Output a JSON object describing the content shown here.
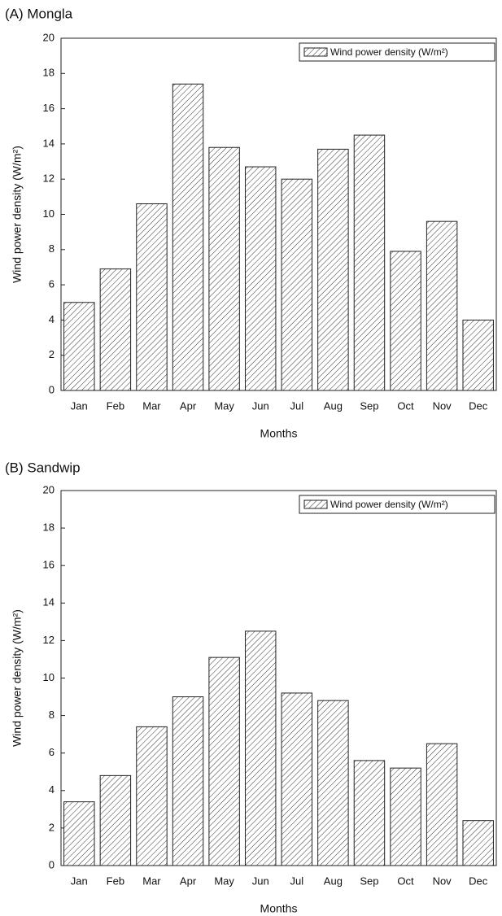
{
  "chart_data": [
    {
      "type": "bar",
      "title": "(A) Mongla",
      "x_label": "Months",
      "y_label": "Wind power density (W/m²)",
      "categories": [
        "Jan",
        "Feb",
        "Mar",
        "Apr",
        "May",
        "Jun",
        "Jul",
        "Aug",
        "Sep",
        "Oct",
        "Nov",
        "Dec"
      ],
      "series": [
        {
          "name": "Wind power density (W/m²)",
          "color": "#333333",
          "values": [
            5.0,
            6.9,
            10.6,
            17.4,
            13.8,
            12.7,
            12.0,
            13.7,
            14.5,
            7.9,
            9.6,
            4.0
          ]
        }
      ],
      "ylim": [
        0,
        20
      ],
      "yticks": [
        0,
        2,
        4,
        6,
        8,
        10,
        12,
        14,
        16,
        18,
        20
      ],
      "legend": "upper-right"
    },
    {
      "type": "bar",
      "title": "(B) Sandwip",
      "x_label": "Months",
      "y_label": "Wind power density (W/m²)",
      "categories": [
        "Jan",
        "Feb",
        "Mar",
        "Apr",
        "May",
        "Jun",
        "Jul",
        "Aug",
        "Sep",
        "Oct",
        "Nov",
        "Dec"
      ],
      "series": [
        {
          "name": "Wind power density (W/m²)",
          "color": "#333333",
          "values": [
            3.4,
            4.8,
            7.4,
            9.0,
            11.1,
            12.5,
            9.2,
            8.8,
            5.6,
            5.2,
            6.5,
            2.4
          ]
        }
      ],
      "ylim": [
        0,
        20
      ],
      "yticks": [
        0,
        2,
        4,
        6,
        8,
        10,
        12,
        14,
        16,
        18,
        20
      ],
      "legend": "upper-right"
    }
  ]
}
